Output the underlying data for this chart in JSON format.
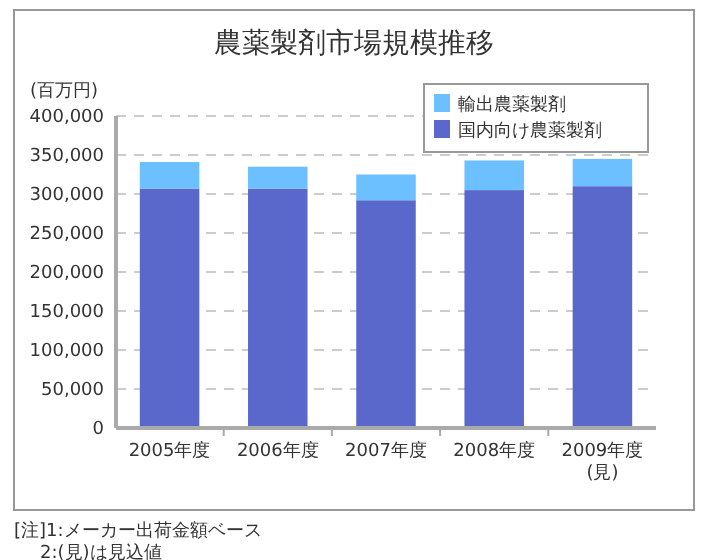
{
  "chart_data": {
    "type": "bar",
    "title": "農薬製剤市場規模推移",
    "ylabel": "(百万円)",
    "categories": [
      "2005年度",
      "2006年度",
      "2007年度",
      "2008年度",
      "2009年度\n(見)"
    ],
    "stacked": true,
    "series": [
      {
        "name": "国内向け農薬製剤",
        "color": "#5a68cc",
        "values": [
          307000,
          307000,
          292000,
          305000,
          310000
        ]
      },
      {
        "name": "輸出農薬製剤",
        "color": "#6cc0ff",
        "values": [
          34000,
          28000,
          33000,
          38000,
          35000
        ]
      }
    ],
    "ylim": [
      0,
      400000
    ],
    "yticks": [
      {
        "value": 0,
        "label": "0"
      },
      {
        "value": 50000,
        "label": "50,000"
      },
      {
        "value": 100000,
        "label": "100,000"
      },
      {
        "value": 150000,
        "label": "150,000"
      },
      {
        "value": 200000,
        "label": "200,000"
      },
      {
        "value": 250000,
        "label": "250,000"
      },
      {
        "value": 300000,
        "label": "300,000"
      },
      {
        "value": 350000,
        "label": "350,000"
      },
      {
        "value": 400000,
        "label": "400,000"
      }
    ],
    "grid": "y",
    "legend": "top right",
    "annotations": [
      "[注]1:メーカー出荷金額ベース",
      "2:(見)は見込値"
    ]
  }
}
